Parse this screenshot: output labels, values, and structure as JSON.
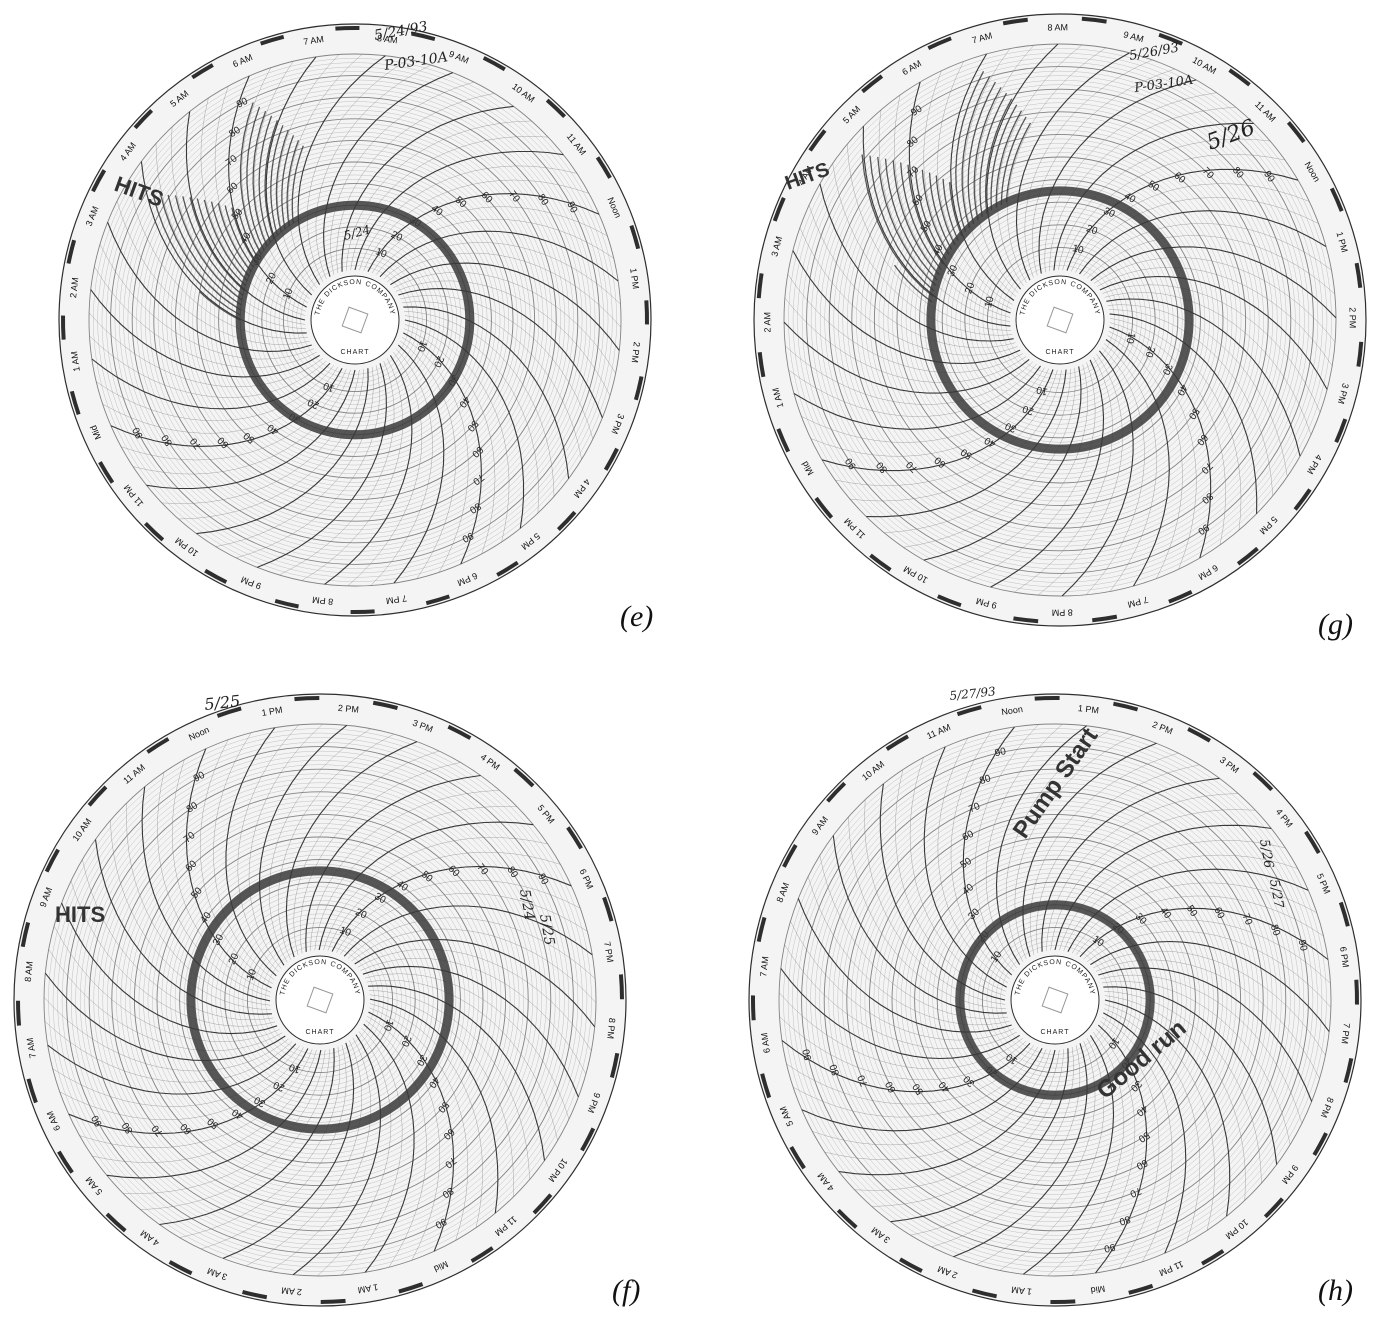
{
  "figure": {
    "colors": {
      "paper": "#f4f4f4",
      "grid": "#777777",
      "ink": "#2e2e2e",
      "trace": "#3a3a3a",
      "background": "#ffffff"
    }
  },
  "hub": {
    "company": "THE DICKSON COMPANY",
    "chart_no": "CHART"
  },
  "chart_data": [
    {
      "id": "e",
      "type": "polar",
      "label": "(e)",
      "hour_labels": [
        "Noon",
        "1 PM",
        "2 PM",
        "3 PM",
        "4 PM",
        "5 PM",
        "6 PM",
        "7 PM",
        "8 PM",
        "9 PM",
        "10 PM",
        "11 PM",
        "Mid",
        "1 AM",
        "2 AM",
        "3 AM",
        "4 AM",
        "5 AM",
        "6 AM",
        "7 AM",
        "8 AM",
        "9 AM",
        "10 AM",
        "11 AM"
      ],
      "radial_scale": [
        10,
        20,
        30,
        40,
        50,
        60,
        70,
        80,
        90
      ],
      "handwritten": [
        "5/24/93",
        "P-03-10A",
        "5/24"
      ],
      "annotations": [
        "HITS"
      ],
      "trace": {
        "type": "ring",
        "level": 30,
        "spiky_from": "5 AM",
        "spiky_to": "9 AM"
      }
    },
    {
      "id": "g",
      "type": "polar",
      "label": "(g)",
      "hour_labels": [
        "Noon",
        "1 PM",
        "2 PM",
        "3 PM",
        "4 PM",
        "5 PM",
        "6 PM",
        "7 PM",
        "8 PM",
        "9 PM",
        "10 PM",
        "11 PM",
        "Mid",
        "1 AM",
        "2 AM",
        "3 AM",
        "4 AM",
        "5 AM",
        "6 AM",
        "7 AM",
        "8 AM",
        "9 AM",
        "10 AM",
        "11 AM"
      ],
      "radial_scale": [
        10,
        20,
        30,
        40,
        50,
        60,
        70,
        80,
        90
      ],
      "handwritten": [
        "5/26/93",
        "P-03-10A",
        "5/26"
      ],
      "annotations": [
        "HITS"
      ],
      "trace": {
        "type": "ring",
        "level": 35,
        "spiky_from": "6 AM",
        "spiky_to": "10 AM"
      }
    },
    {
      "id": "f",
      "type": "polar",
      "label": "(f)",
      "hour_labels": [
        "Noon",
        "1 PM",
        "2 PM",
        "3 PM",
        "4 PM",
        "5 PM",
        "6 PM",
        "7 PM",
        "8 PM",
        "9 PM",
        "10 PM",
        "11 PM",
        "Mid",
        "1 AM",
        "2 AM",
        "3 AM",
        "4 AM",
        "5 AM",
        "6 AM",
        "7 AM",
        "8 AM",
        "9 AM",
        "10 AM",
        "11 AM"
      ],
      "radial_scale": [
        10,
        20,
        30,
        40,
        50,
        60,
        70,
        80,
        90
      ],
      "handwritten": [
        "5/25",
        "5/24",
        "5/25"
      ],
      "annotations": [
        "HITS"
      ],
      "trace": {
        "type": "ring",
        "level": 35,
        "spiky_from": "",
        "spiky_to": ""
      }
    },
    {
      "id": "h",
      "type": "polar",
      "label": "(h)",
      "hour_labels": [
        "Noon",
        "1 PM",
        "2 PM",
        "3 PM",
        "4 PM",
        "5 PM",
        "6 PM",
        "7 PM",
        "8 PM",
        "9 PM",
        "10 PM",
        "11 PM",
        "Mid",
        "1 AM",
        "2 AM",
        "3 AM",
        "4 AM",
        "5 AM",
        "6 AM",
        "7 AM",
        "8 AM",
        "9 AM",
        "10 AM",
        "11 AM"
      ],
      "radial_scale": [
        10,
        20,
        30,
        40,
        50,
        60,
        70,
        80,
        90
      ],
      "handwritten": [
        "5/27/93",
        "5/26",
        "5/27"
      ],
      "annotations": [
        "Pump Start",
        "Good run"
      ],
      "trace": {
        "type": "ring",
        "level": 20,
        "spiky_from": "",
        "spiky_to": ""
      }
    }
  ]
}
